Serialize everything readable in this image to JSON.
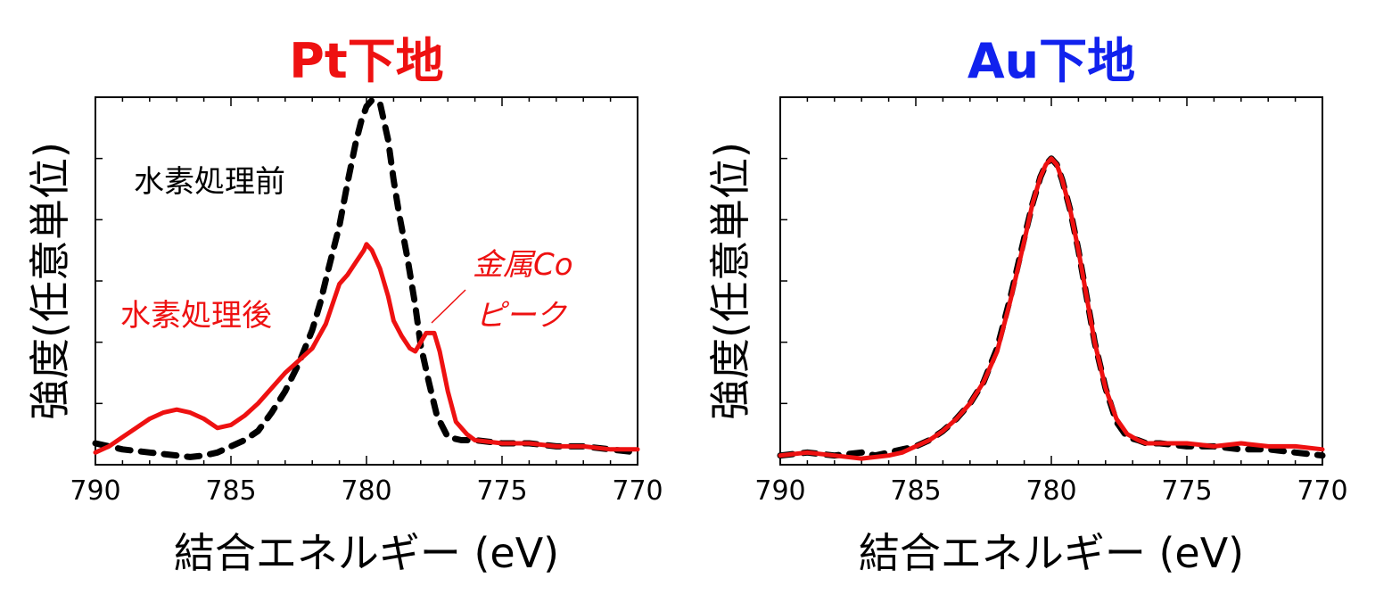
{
  "colors": {
    "red": "#ee1111",
    "blue": "#1122ee",
    "black": "#000000"
  },
  "chart_data": [
    {
      "type": "line",
      "title": "Pt下地",
      "title_color": "#ee1111",
      "xlabel": "結合エネルギー (eV)",
      "ylabel": "強度(任意単位)",
      "xlim": [
        790,
        770
      ],
      "ylim": [
        0,
        1.2
      ],
      "x_ticks": [
        790,
        785,
        780,
        775,
        770
      ],
      "x_tick_labels": [
        "790",
        "785",
        "780",
        "775",
        "770"
      ],
      "grid": false,
      "annotations": {
        "before": "水素処理前",
        "after": "水素処理後",
        "co_line1": "金属Co",
        "co_line2": "ピーク"
      },
      "series": [
        {
          "label_key": "before",
          "style": "dashed",
          "color": "#000000",
          "x": [
            790,
            789,
            788,
            787,
            786.5,
            786,
            785.5,
            785,
            784.5,
            784,
            783.5,
            783,
            782.5,
            782,
            781.7,
            781.4,
            781,
            780.7,
            780.4,
            780.2,
            780,
            779.8,
            779.5,
            779.2,
            779,
            778.8,
            778.5,
            778.2,
            778,
            777.7,
            777.4,
            777,
            776.5,
            776,
            775,
            774,
            773,
            772,
            771,
            770
          ],
          "y": [
            0.07,
            0.05,
            0.04,
            0.03,
            0.025,
            0.03,
            0.04,
            0.06,
            0.08,
            0.11,
            0.17,
            0.24,
            0.33,
            0.44,
            0.53,
            0.64,
            0.78,
            0.92,
            1.05,
            1.12,
            1.17,
            1.19,
            1.18,
            1.06,
            0.93,
            0.82,
            0.68,
            0.52,
            0.39,
            0.27,
            0.16,
            0.09,
            0.08,
            0.08,
            0.07,
            0.07,
            0.06,
            0.06,
            0.05,
            0.04
          ]
        },
        {
          "label_key": "after",
          "style": "solid",
          "color": "#ee1111",
          "x": [
            790,
            789.5,
            789,
            788.5,
            788,
            787.5,
            787,
            786.5,
            786,
            785.5,
            785,
            784.5,
            784,
            783.5,
            783,
            782.5,
            782,
            781.5,
            781,
            780.7,
            780.4,
            780.1,
            780,
            779.8,
            779.5,
            779.2,
            779,
            778.7,
            778.4,
            778.2,
            778,
            777.8,
            777.5,
            777.3,
            777,
            776.7,
            776.3,
            776,
            775,
            774,
            773,
            772,
            771,
            770
          ],
          "y": [
            0.04,
            0.06,
            0.09,
            0.12,
            0.15,
            0.17,
            0.18,
            0.17,
            0.15,
            0.12,
            0.13,
            0.16,
            0.2,
            0.25,
            0.3,
            0.34,
            0.38,
            0.46,
            0.59,
            0.62,
            0.66,
            0.7,
            0.72,
            0.7,
            0.64,
            0.55,
            0.47,
            0.42,
            0.38,
            0.37,
            0.4,
            0.43,
            0.43,
            0.37,
            0.24,
            0.14,
            0.1,
            0.08,
            0.07,
            0.07,
            0.06,
            0.06,
            0.05,
            0.05
          ]
        }
      ]
    },
    {
      "type": "line",
      "title": "Au下地",
      "title_color": "#1122ee",
      "xlabel": "結合エネルギー (eV)",
      "ylabel": "強度(任意単位)",
      "xlim": [
        790,
        770
      ],
      "ylim": [
        0,
        1.2
      ],
      "x_ticks": [
        790,
        785,
        780,
        775,
        770
      ],
      "x_tick_labels": [
        "790",
        "785",
        "780",
        "775",
        "770"
      ],
      "grid": false,
      "series": [
        {
          "style": "dashed",
          "color": "#000000",
          "x": [
            790,
            789,
            788,
            787,
            786.5,
            786,
            785.5,
            785,
            784.5,
            784,
            783.5,
            783,
            782.5,
            782,
            781.5,
            781,
            780.7,
            780.4,
            780.2,
            780,
            779.8,
            779.6,
            779.3,
            779,
            778.7,
            778.4,
            778,
            777.6,
            777.2,
            776.8,
            776.5,
            776,
            775,
            774,
            773,
            772,
            771,
            770
          ],
          "y": [
            0.03,
            0.04,
            0.03,
            0.04,
            0.03,
            0.04,
            0.05,
            0.06,
            0.08,
            0.11,
            0.15,
            0.2,
            0.27,
            0.38,
            0.55,
            0.74,
            0.85,
            0.94,
            0.98,
            1.0,
            0.98,
            0.93,
            0.83,
            0.7,
            0.55,
            0.4,
            0.25,
            0.14,
            0.09,
            0.08,
            0.07,
            0.07,
            0.06,
            0.06,
            0.05,
            0.05,
            0.04,
            0.03
          ]
        },
        {
          "style": "solid",
          "color": "#ee1111",
          "x": [
            790,
            789,
            788,
            787,
            786,
            785.5,
            785,
            784.5,
            784,
            783.5,
            783,
            782.5,
            782,
            781.5,
            781,
            780.7,
            780.4,
            780.2,
            780,
            779.8,
            779.6,
            779.3,
            779,
            778.7,
            778.4,
            778,
            777.6,
            777.2,
            776.8,
            776.5,
            776,
            775,
            774,
            773,
            772,
            771,
            770
          ],
          "y": [
            0.03,
            0.04,
            0.03,
            0.02,
            0.03,
            0.04,
            0.06,
            0.08,
            0.11,
            0.15,
            0.2,
            0.27,
            0.37,
            0.54,
            0.73,
            0.85,
            0.94,
            0.98,
            1.0,
            0.98,
            0.93,
            0.83,
            0.7,
            0.55,
            0.4,
            0.25,
            0.15,
            0.1,
            0.08,
            0.07,
            0.07,
            0.07,
            0.06,
            0.07,
            0.06,
            0.06,
            0.05
          ]
        }
      ]
    }
  ]
}
